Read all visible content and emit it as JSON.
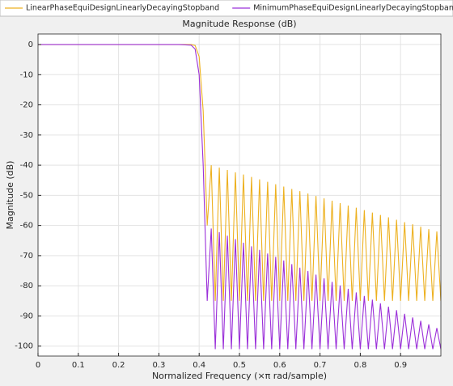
{
  "chart_data": {
    "type": "line",
    "title": "Magnitude Response (dB)",
    "x_label": "Normalized Frequency (×π rad/sample)",
    "y_label": "Magnitude (dB)",
    "x": [
      0,
      0.1,
      0.2,
      0.3,
      0.35,
      0.38,
      0.39,
      0.4,
      0.41,
      0.42,
      0.43,
      0.44,
      0.45,
      0.46,
      0.47,
      0.48,
      0.49,
      0.5,
      0.51,
      0.52,
      0.53,
      0.54,
      0.55,
      0.56,
      0.57,
      0.58,
      0.59,
      0.6,
      0.61,
      0.62,
      0.63,
      0.64,
      0.65,
      0.66,
      0.67,
      0.68,
      0.69,
      0.7,
      0.71,
      0.72,
      0.73,
      0.74,
      0.75,
      0.76,
      0.77,
      0.78,
      0.79,
      0.8,
      0.81,
      0.82,
      0.83,
      0.84,
      0.85,
      0.86,
      0.87,
      0.88,
      0.89,
      0.9,
      0.91,
      0.92,
      0.93,
      0.94,
      0.95,
      0.96,
      0.97,
      0.98,
      0.99,
      1.0
    ],
    "series": [
      {
        "name": "LinearPhaseEquiDesignLinearlyDecayingStopband",
        "color": "#EDB120",
        "values": [
          0,
          0,
          0,
          0,
          0,
          0,
          -0.3,
          -4,
          -22,
          -60,
          -40,
          -85,
          -40.8,
          -85,
          -41.6,
          -85,
          -42.4,
          -85,
          -43.1,
          -85,
          -43.9,
          -85,
          -44.7,
          -85,
          -45.5,
          -85,
          -46.3,
          -85,
          -47.1,
          -85,
          -47.9,
          -85,
          -48.6,
          -85,
          -49.4,
          -85,
          -50.2,
          -85,
          -51,
          -85,
          -51.8,
          -85,
          -52.6,
          -85,
          -53.4,
          -85,
          -54.1,
          -85,
          -54.9,
          -85,
          -55.7,
          -85,
          -56.5,
          -85,
          -57.3,
          -85,
          -58.1,
          -85,
          -58.9,
          -85,
          -59.6,
          -85,
          -60.4,
          -85,
          -61.2,
          -85,
          -62,
          -85
        ]
      },
      {
        "name": "MinimumPhaseEquiDesignLinearlyDecayingStopband",
        "color": "#9B30D9",
        "values": [
          0,
          0,
          0,
          0,
          0,
          -0.2,
          -1.5,
          -10,
          -40,
          -85,
          -61,
          -101,
          -62.2,
          -101,
          -63.4,
          -101,
          -64.5,
          -101,
          -65.7,
          -101,
          -66.9,
          -101,
          -68.1,
          -101,
          -69.3,
          -101,
          -70.4,
          -101,
          -71.6,
          -101,
          -72.8,
          -101,
          -74,
          -101,
          -75.1,
          -101,
          -76.3,
          -101,
          -77.5,
          -101,
          -78.7,
          -101,
          -79.9,
          -101,
          -81,
          -101,
          -82.2,
          -101,
          -83.4,
          -101,
          -84.6,
          -101,
          -85.8,
          -101,
          -86.9,
          -101,
          -88.1,
          -101,
          -89.3,
          -101,
          -90.5,
          -101,
          -91.6,
          -101,
          -92.8,
          -101,
          -94,
          -101
        ]
      }
    ],
    "xlim": [
      0,
      1
    ],
    "ylim": [
      -103.3,
      3.5
    ],
    "xticks": [
      0,
      0.1,
      0.2,
      0.3,
      0.4,
      0.5,
      0.6,
      0.7,
      0.8,
      0.9
    ],
    "yticks": [
      0,
      -10,
      -20,
      -30,
      -40,
      -50,
      -60,
      -70,
      -80,
      -90,
      -100
    ],
    "grid": true,
    "legend": "top"
  }
}
